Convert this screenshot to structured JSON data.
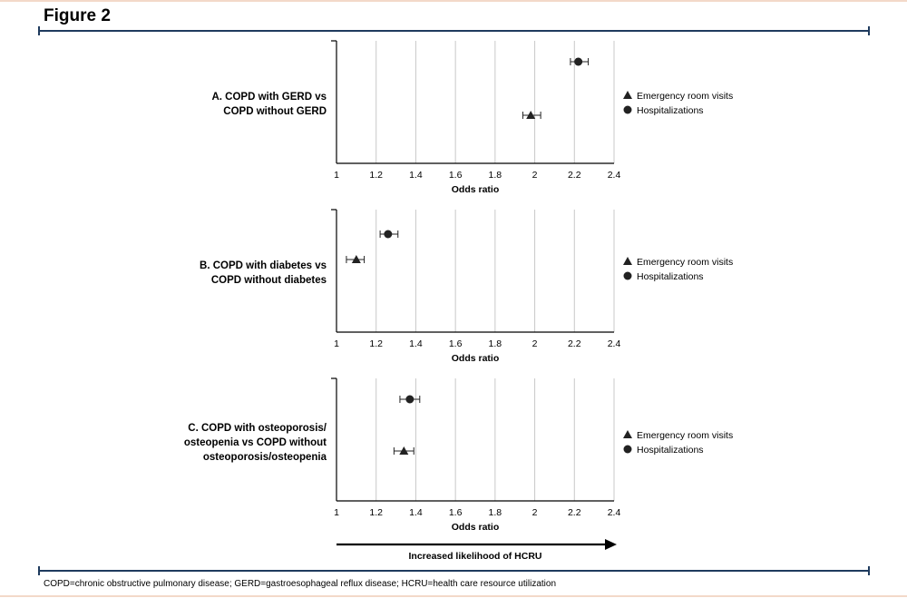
{
  "figure_title": "Figure 2",
  "footnote": "COPD=chronic obstructive pulmonary disease; GERD=gastroesophageal reflux disease; HCRU=health care resource utilization",
  "arrow_label": "Increased likelihood of HCRU",
  "colors": {
    "rule": "#1f3b5e",
    "grid": "#c8c8c8",
    "marker": "#222222",
    "text": "#000000"
  },
  "chart_data": [
    {
      "type": "scatter",
      "title": "A. COPD with GERD vs COPD without GERD",
      "title_lines": [
        "A. COPD with GERD vs",
        "COPD without GERD"
      ],
      "xlabel": "Odds ratio",
      "xlim": [
        1,
        2.4
      ],
      "ticks": [
        "1",
        "1.2",
        "1.4",
        "1.6",
        "1.8",
        "2",
        "2.2",
        "2.4"
      ],
      "grid": true,
      "legend": [
        "Emergency room visits",
        "Hospitalizations"
      ],
      "legend_position": "right",
      "series": [
        {
          "name": "Hospitalizations",
          "marker": "circle",
          "value": 2.22,
          "ci": [
            2.18,
            2.27
          ]
        },
        {
          "name": "Emergency room visits",
          "marker": "triangle",
          "value": 1.98,
          "ci": [
            1.94,
            2.03
          ]
        }
      ]
    },
    {
      "type": "scatter",
      "title": "B. COPD with diabetes vs COPD without diabetes",
      "title_lines": [
        "B. COPD with diabetes vs",
        "COPD without diabetes"
      ],
      "xlabel": "Odds ratio",
      "xlim": [
        1,
        2.4
      ],
      "ticks": [
        "1",
        "1.2",
        "1.4",
        "1.6",
        "1.8",
        "2",
        "2.2",
        "2.4"
      ],
      "grid": true,
      "legend": [
        "Emergency room visits",
        "Hospitalizations"
      ],
      "legend_position": "right",
      "series": [
        {
          "name": "Hospitalizations",
          "marker": "circle",
          "value": 1.26,
          "ci": [
            1.22,
            1.31
          ]
        },
        {
          "name": "Emergency room visits",
          "marker": "triangle",
          "value": 1.1,
          "ci": [
            1.05,
            1.14
          ]
        }
      ]
    },
    {
      "type": "scatter",
      "title": "C. COPD with osteoporosis/osteopenia vs COPD without osteoporosis/osteopenia",
      "title_lines": [
        "C. COPD with osteoporosis/",
        "osteopenia vs COPD without",
        "osteoporosis/osteopenia"
      ],
      "xlabel": "Odds ratio",
      "xlim": [
        1,
        2.4
      ],
      "ticks": [
        "1",
        "1.2",
        "1.4",
        "1.6",
        "1.8",
        "2",
        "2.2",
        "2.4"
      ],
      "grid": true,
      "legend": [
        "Emergency room visits",
        "Hospitalizations"
      ],
      "legend_position": "right",
      "series": [
        {
          "name": "Hospitalizations",
          "marker": "circle",
          "value": 1.37,
          "ci": [
            1.32,
            1.42
          ]
        },
        {
          "name": "Emergency room visits",
          "marker": "triangle",
          "value": 1.34,
          "ci": [
            1.29,
            1.39
          ]
        }
      ]
    }
  ]
}
